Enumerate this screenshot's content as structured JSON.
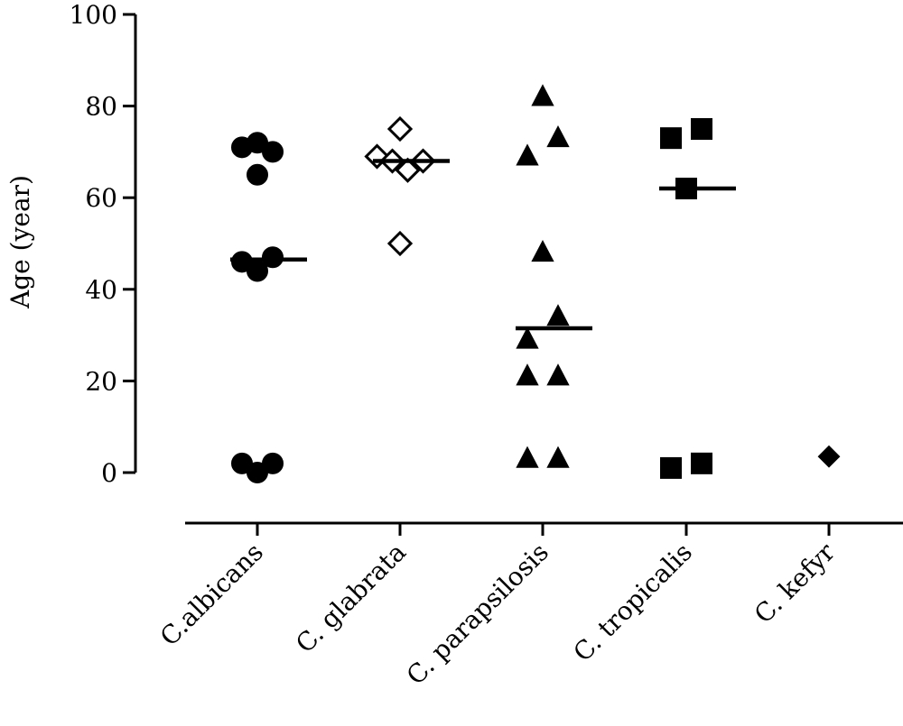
{
  "chart_data": {
    "type": "scatter",
    "title": "",
    "ylabel": "Age (year)",
    "xlabel": "",
    "ylim": [
      0,
      100
    ],
    "yticks": [
      0,
      20,
      40,
      60,
      80,
      100
    ],
    "ytick_labels": [
      "0",
      "20",
      "40",
      "60",
      "80",
      "100"
    ],
    "grid": false,
    "categories": [
      "C.albicans",
      "C. glabrata",
      "C. parapsilosis",
      "C. tropicalis",
      "C. kefyr"
    ],
    "series": [
      {
        "category": "C.albicans",
        "marker": "circle",
        "filled": true,
        "median": 46.5,
        "points": [
          {
            "offset": -1,
            "y": 71
          },
          {
            "offset": 0,
            "y": 72
          },
          {
            "offset": 1,
            "y": 70
          },
          {
            "offset": 0,
            "y": 65
          },
          {
            "offset": -1,
            "y": 46
          },
          {
            "offset": 0,
            "y": 44
          },
          {
            "offset": 1,
            "y": 47
          },
          {
            "offset": -1,
            "y": 2
          },
          {
            "offset": 0,
            "y": 0
          },
          {
            "offset": 1,
            "y": 2
          }
        ]
      },
      {
        "category": "C. glabrata",
        "marker": "diamond",
        "filled": false,
        "median": 68,
        "points": [
          {
            "offset": 0,
            "y": 75
          },
          {
            "offset": -1.5,
            "y": 69
          },
          {
            "offset": -0.5,
            "y": 68
          },
          {
            "offset": 1.5,
            "y": 68
          },
          {
            "offset": 0.5,
            "y": 66
          },
          {
            "offset": 0,
            "y": 50
          }
        ]
      },
      {
        "category": "C. parapsilosis",
        "marker": "triangle",
        "filled": true,
        "median": 31.5,
        "points": [
          {
            "offset": 0,
            "y": 82
          },
          {
            "offset": 1,
            "y": 73
          },
          {
            "offset": -1,
            "y": 69
          },
          {
            "offset": 0,
            "y": 48
          },
          {
            "offset": 1,
            "y": 34
          },
          {
            "offset": -1,
            "y": 29
          },
          {
            "offset": -1,
            "y": 21
          },
          {
            "offset": 1,
            "y": 21
          },
          {
            "offset": -1,
            "y": 3
          },
          {
            "offset": 1,
            "y": 3
          }
        ]
      },
      {
        "category": "C. tropicalis",
        "marker": "square",
        "filled": true,
        "median": 62,
        "points": [
          {
            "offset": -1,
            "y": 73
          },
          {
            "offset": 1,
            "y": 75
          },
          {
            "offset": 0,
            "y": 62
          },
          {
            "offset": -1,
            "y": 1
          },
          {
            "offset": 1,
            "y": 2
          }
        ]
      },
      {
        "category": "C. kefyr",
        "marker": "diamond",
        "filled": true,
        "median": null,
        "points": [
          {
            "offset": 0,
            "y": 3.5
          }
        ]
      }
    ]
  }
}
